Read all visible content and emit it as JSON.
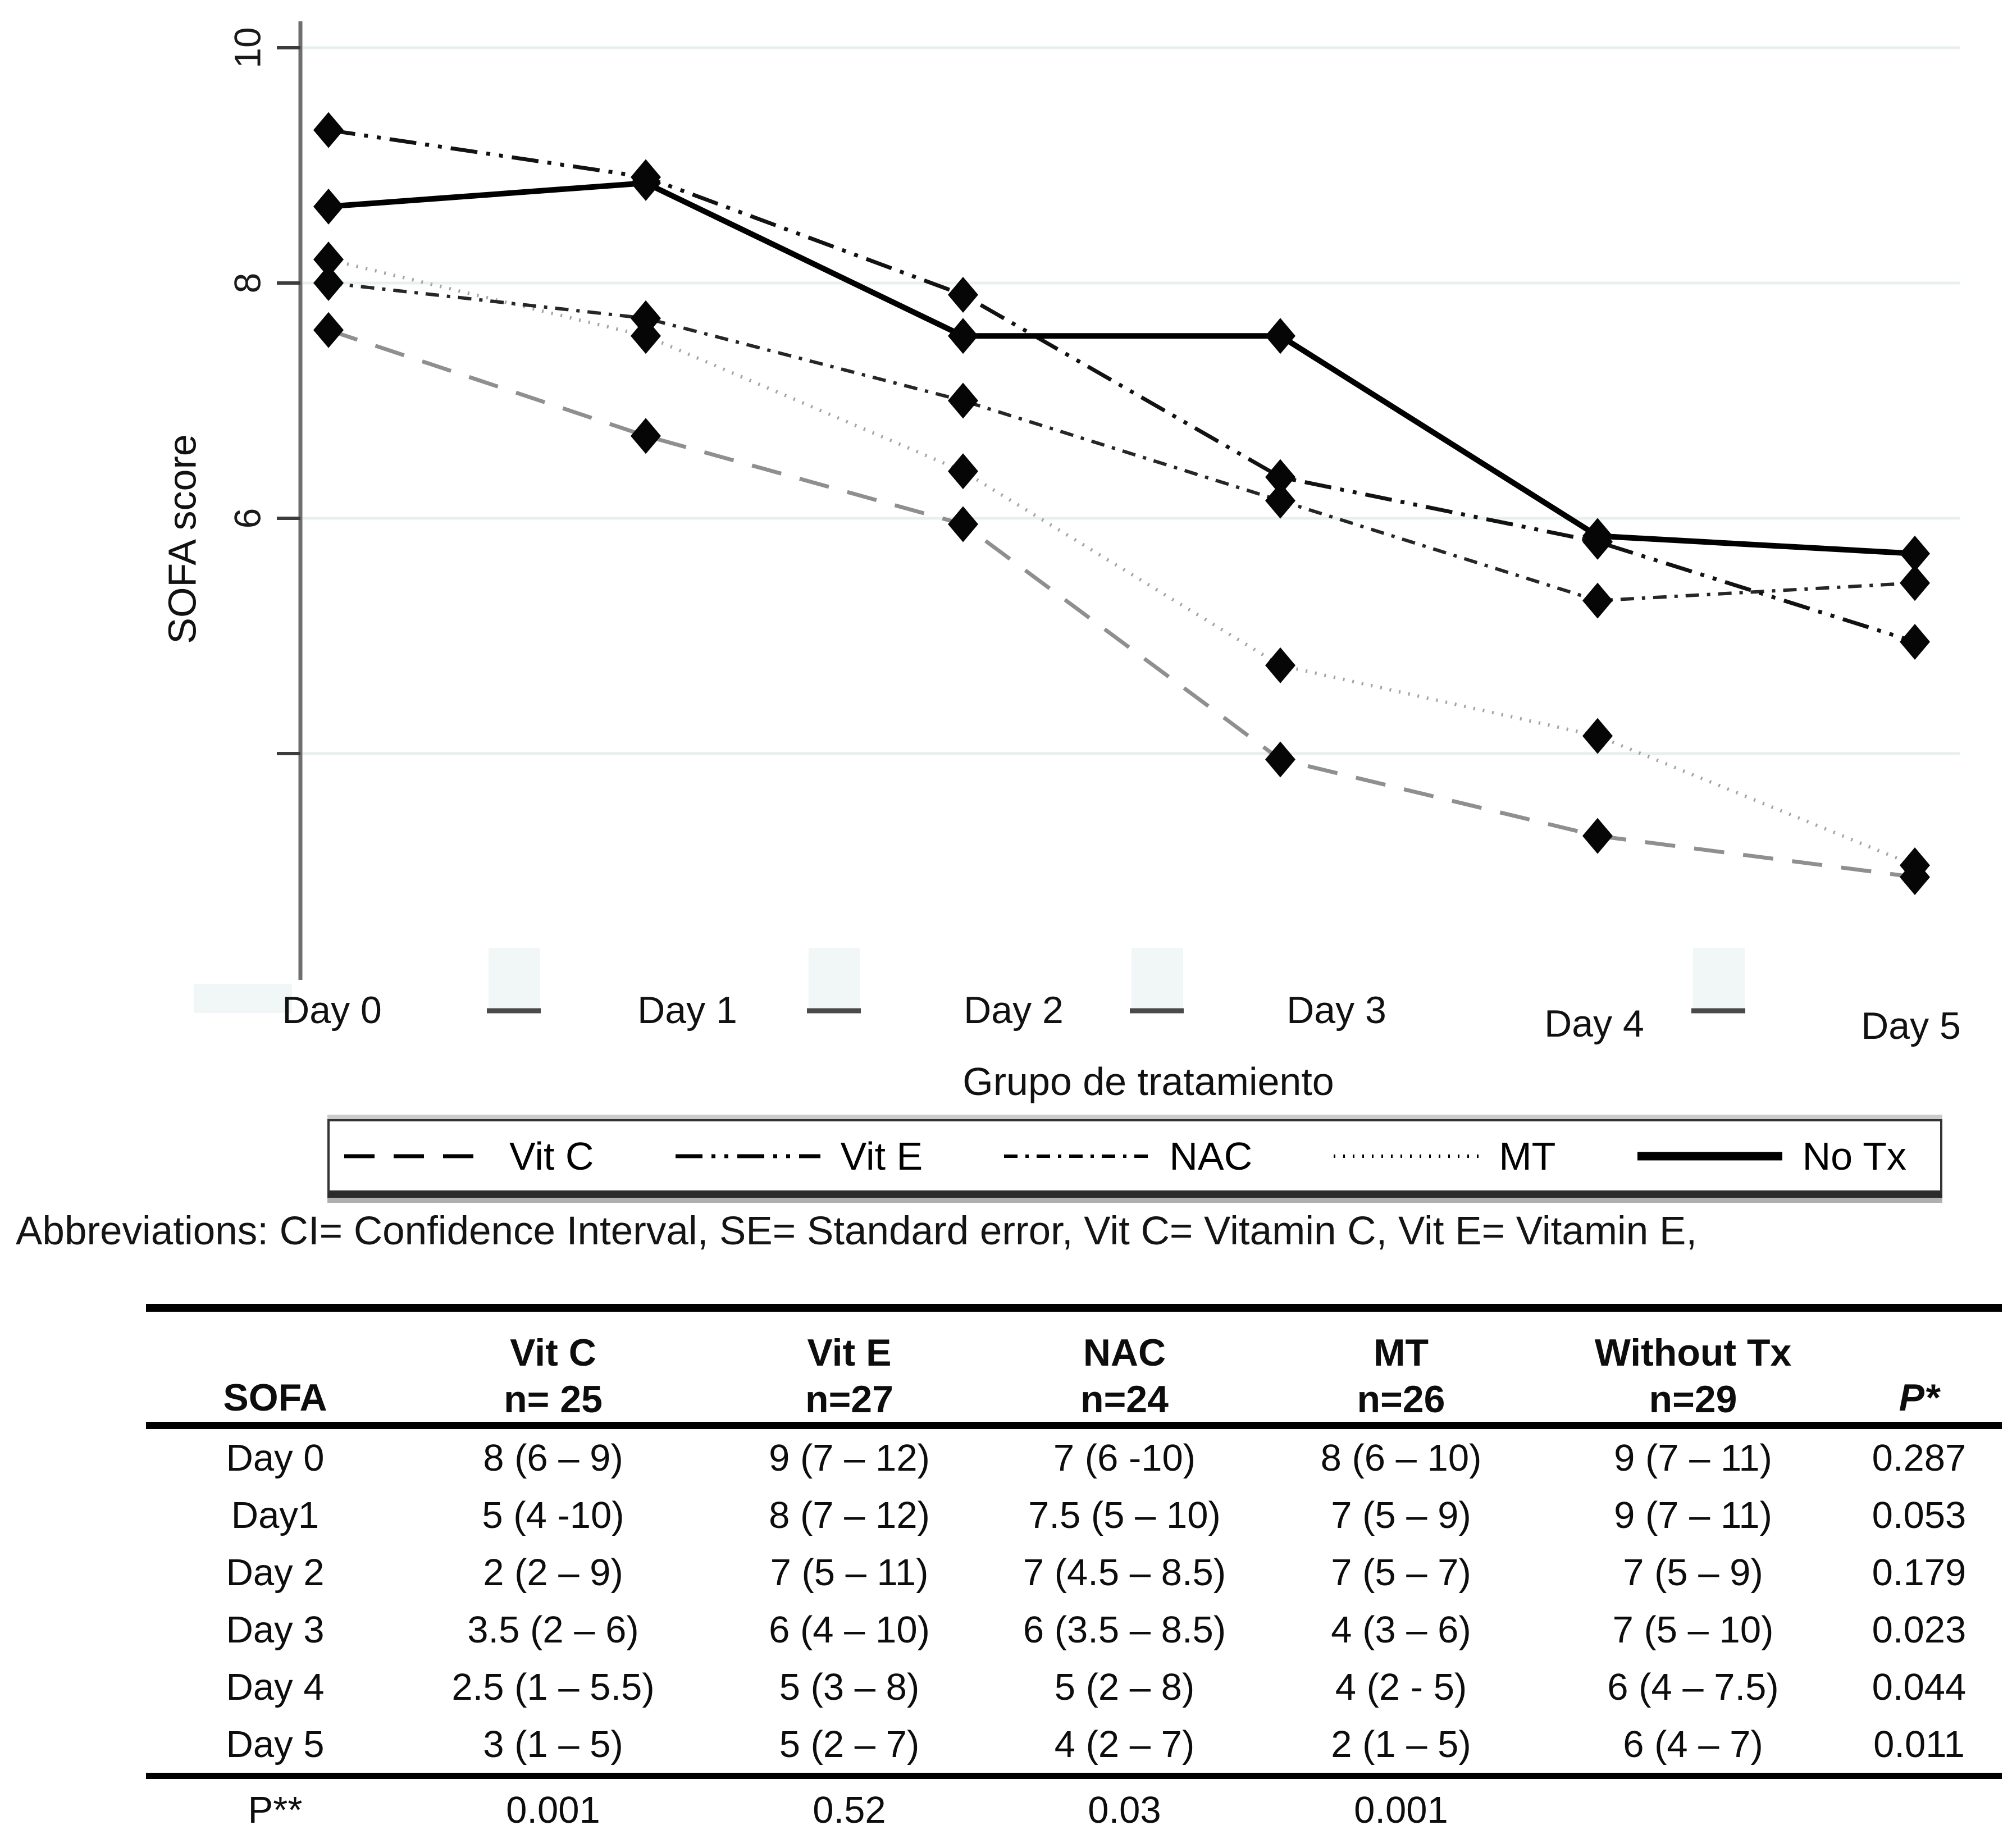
{
  "chart_data": {
    "type": "line",
    "title": "",
    "xlabel": "Grupo de tratamiento",
    "ylabel": "SOFA score",
    "x_categories": [
      "Day 0",
      "Day 1",
      "Day 2",
      "Day 3",
      "Day 4",
      "Day 5"
    ],
    "y_ticks": [
      "10",
      "8",
      "6"
    ],
    "y_gridlines": [
      10,
      8,
      6,
      4
    ],
    "ylim": [
      2.2,
      10.3
    ],
    "grid": "horizontal-light",
    "legend_position": "bottom-boxed",
    "marker": "diamond",
    "marker_color": "#060606",
    "series": [
      {
        "name": "Vit C",
        "style": "dashed",
        "color": "#8f8f8f",
        "values": [
          7.6,
          6.7,
          5.95,
          3.95,
          3.3,
          2.95
        ]
      },
      {
        "name": "Vit E",
        "style": "dash-dot-dot",
        "color": "#121212",
        "values": [
          9.3,
          8.9,
          7.9,
          6.35,
          5.8,
          4.95
        ]
      },
      {
        "name": "NAC",
        "style": "dash-dot",
        "color": "#262626",
        "values": [
          8.0,
          7.7,
          7.0,
          6.15,
          5.3,
          5.45
        ]
      },
      {
        "name": "MT",
        "style": "dotted",
        "color": "#a3a3a3",
        "values": [
          8.2,
          7.55,
          6.4,
          4.75,
          4.15,
          3.05
        ]
      },
      {
        "name": "No Tx",
        "style": "solid",
        "color": "#000000",
        "values": [
          8.65,
          8.85,
          7.55,
          7.55,
          5.85,
          5.7
        ]
      }
    ]
  },
  "abbreviations": "Abbreviations: CI= Confidence Interval, SE= Standard error, Vit C= Vitamin C, Vit E= Vitamin E,",
  "table": {
    "header": {
      "col0": "SOFA",
      "p_label": "P*",
      "groups": [
        {
          "label": "Vit C",
          "n": "n= 25"
        },
        {
          "label": "Vit E",
          "n": "n=27"
        },
        {
          "label": "NAC",
          "n": "n=24"
        },
        {
          "label": "MT",
          "n": "n=26"
        },
        {
          "label": "Without Tx",
          "n": "n=29"
        }
      ]
    },
    "rows": [
      {
        "label": "Day 0",
        "cells": [
          "8 (6 – 9)",
          "9 (7 – 12)",
          "7 (6 -10)",
          "8 (6 – 10)",
          "9 (7 – 11)",
          "0.287"
        ]
      },
      {
        "label": "Day1",
        "cells": [
          "5 (4 -10)",
          "8 (7 – 12)",
          "7.5 (5 – 10)",
          "7 (5 – 9)",
          "9 (7 – 11)",
          "0.053"
        ]
      },
      {
        "label": "Day 2",
        "cells": [
          "2 (2 – 9)",
          "7 (5 – 11)",
          "7 (4.5 – 8.5)",
          "7 (5 – 7)",
          "7 (5 – 9)",
          "0.179"
        ]
      },
      {
        "label": "Day 3",
        "cells": [
          "3.5 (2 – 6)",
          "6 (4 – 10)",
          "6 (3.5 – 8.5)",
          "4 (3 – 6)",
          "7 (5 – 10)",
          "0.023"
        ]
      },
      {
        "label": "Day 4",
        "cells": [
          "2.5 (1 – 5.5)",
          "5 (3 – 8)",
          "5 (2 – 8)",
          "4 (2 - 5)",
          "6 (4 – 7.5)",
          "0.044"
        ]
      },
      {
        "label": "Day 5",
        "cells": [
          "3 (1 – 5)",
          "5 (2 – 7)",
          "4 (2 – 7)",
          "2 (1 – 5)",
          "6 (4 – 7)",
          "0.011"
        ]
      }
    ],
    "footer": {
      "label": "P**",
      "cells": [
        "0.001",
        "0.52",
        "0.03",
        "0.001",
        "",
        ""
      ]
    }
  }
}
